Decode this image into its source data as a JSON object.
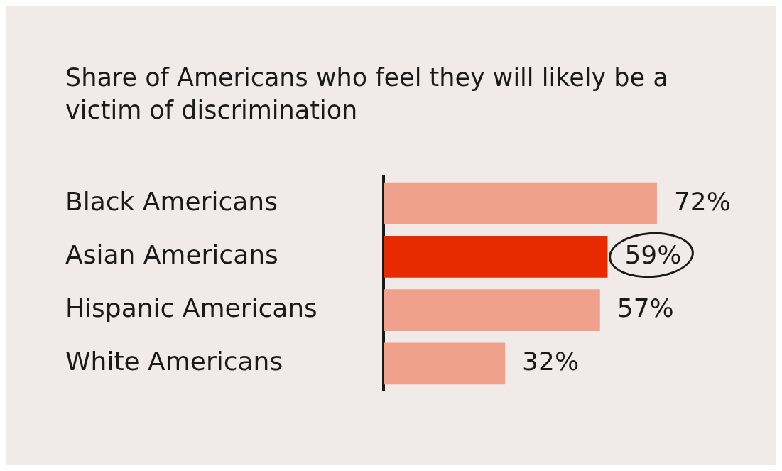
{
  "chart_data": {
    "type": "bar",
    "orientation": "horizontal",
    "title": "Share of Americans who feel they will likely be a victim of discrimination",
    "categories": [
      "Black Americans",
      "Asian Americans",
      "Hispanic Americans",
      "White Americans"
    ],
    "values": [
      72,
      59,
      57,
      32
    ],
    "colors": [
      "#efa18c",
      "#e82a00",
      "#efa18c",
      "#efa18c"
    ],
    "value_labels": [
      "72%",
      "59%",
      "57%",
      "32%"
    ],
    "tick_labels": "y",
    "grid": false,
    "legend": false
  }
}
